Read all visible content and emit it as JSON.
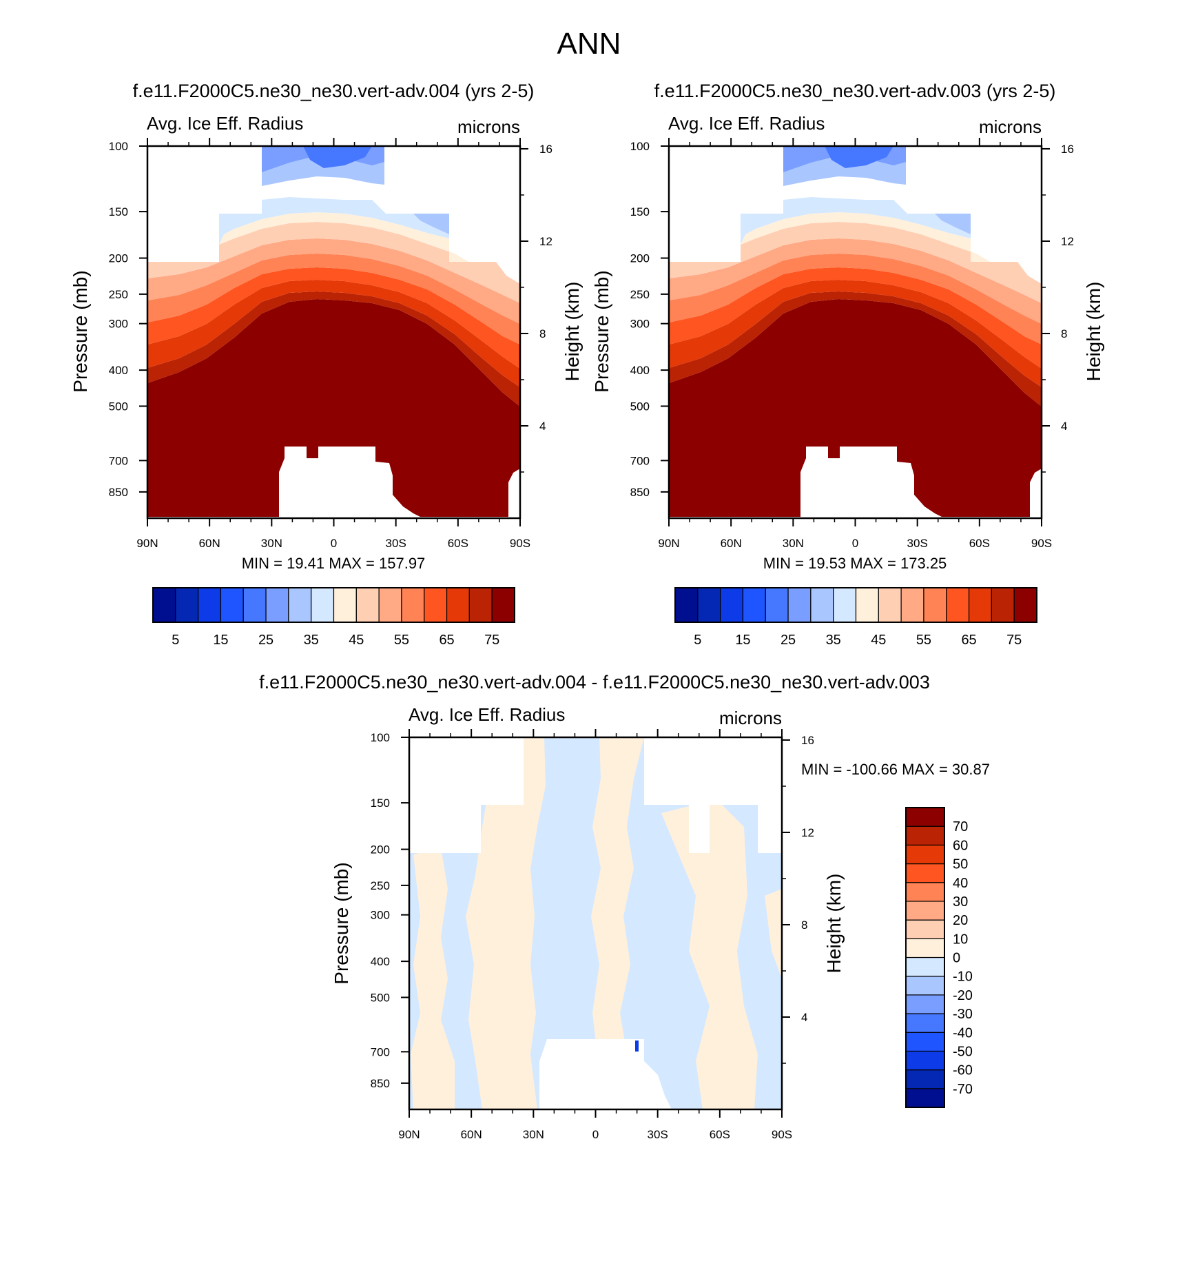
{
  "figure": {
    "title": "ANN"
  },
  "colorbar_abs": {
    "colors": [
      "#000f90",
      "#0428b4",
      "#0d3be8",
      "#1f55ff",
      "#4677ff",
      "#799eff",
      "#aac6ff",
      "#d4e8ff",
      "#fff0dc",
      "#ffcfb4",
      "#ffa985",
      "#ff8355",
      "#ff5520",
      "#e53908",
      "#bb2305",
      "#8c0000"
    ],
    "labels": [
      "5",
      "15",
      "25",
      "35",
      "45",
      "55",
      "65",
      "75"
    ]
  },
  "colorbar_diff": {
    "colors": [
      "#000f90",
      "#0428b4",
      "#0d3be8",
      "#1f55ff",
      "#4677ff",
      "#799eff",
      "#aac6ff",
      "#d4e8ff",
      "#fff0dc",
      "#ffcfb4",
      "#ffa985",
      "#ff8355",
      "#ff5520",
      "#e53908",
      "#bb2305",
      "#8c0000"
    ],
    "labels": [
      "-70",
      "-60",
      "-50",
      "-40",
      "-30",
      "-20",
      "-10",
      "0",
      "10",
      "20",
      "30",
      "40",
      "50",
      "60",
      "70"
    ]
  },
  "panels": [
    {
      "title": "f.e11.F2000C5.ne30_ne30.vert-adv.004 (yrs 2-5)",
      "var_label": "Avg. Ice Eff. Radius",
      "units": "microns",
      "ylabel": "Pressure (mb)",
      "ylabel_right": "Height (km)",
      "stats": "MIN =  19.41  MAX = 157.97"
    },
    {
      "title": "f.e11.F2000C5.ne30_ne30.vert-adv.003 (yrs 2-5)",
      "var_label": "Avg. Ice Eff. Radius",
      "units": "microns",
      "ylabel": "Pressure (mb)",
      "ylabel_right": "Height (km)",
      "stats": "MIN =  19.53  MAX = 173.25"
    },
    {
      "title": "f.e11.F2000C5.ne30_ne30.vert-adv.004 - f.e11.F2000C5.ne30_ne30.vert-adv.003",
      "var_label": "Avg. Ice Eff. Radius",
      "units": "microns",
      "ylabel": "Pressure (mb)",
      "ylabel_right": "Height (km)",
      "stats": "MIN = -100.66  MAX =  30.87"
    }
  ],
  "chart_data": [
    {
      "type": "heatmap",
      "title": "f.e11.F2000C5.ne30_ne30.vert-adv.004 (yrs 2-5)",
      "variable": "Avg. Ice Eff. Radius",
      "units": "microns",
      "xlabel": "",
      "ylabel": "Pressure (mb)",
      "ylabel_right": "Height (km)",
      "x_ticks": [
        "90N",
        "60N",
        "30N",
        "0",
        "30S",
        "60S",
        "90S"
      ],
      "x_tick_values": [
        90,
        60,
        30,
        0,
        -30,
        -60,
        -90
      ],
      "y_ticks": [
        100,
        150,
        200,
        250,
        300,
        400,
        500,
        700,
        850
      ],
      "y_right_ticks": [
        16,
        12,
        8,
        4
      ],
      "ylim": [
        100,
        1000
      ],
      "log_scale_y": true,
      "min": 19.41,
      "max": 157.97,
      "contour_levels": [
        5,
        10,
        15,
        20,
        25,
        30,
        35,
        40,
        45,
        50,
        55,
        60,
        65,
        70,
        75
      ],
      "colorbar_labels": [
        "5",
        "15",
        "25",
        "35",
        "45",
        "55",
        "65",
        "75"
      ]
    },
    {
      "type": "heatmap",
      "title": "f.e11.F2000C5.ne30_ne30.vert-adv.003 (yrs 2-5)",
      "variable": "Avg. Ice Eff. Radius",
      "units": "microns",
      "xlabel": "",
      "ylabel": "Pressure (mb)",
      "ylabel_right": "Height (km)",
      "x_ticks": [
        "90N",
        "60N",
        "30N",
        "0",
        "30S",
        "60S",
        "90S"
      ],
      "x_tick_values": [
        90,
        60,
        30,
        0,
        -30,
        -60,
        -90
      ],
      "y_ticks": [
        100,
        150,
        200,
        250,
        300,
        400,
        500,
        700,
        850
      ],
      "y_right_ticks": [
        16,
        12,
        8,
        4
      ],
      "ylim": [
        100,
        1000
      ],
      "log_scale_y": true,
      "min": 19.53,
      "max": 173.25,
      "contour_levels": [
        5,
        10,
        15,
        20,
        25,
        30,
        35,
        40,
        45,
        50,
        55,
        60,
        65,
        70,
        75
      ],
      "colorbar_labels": [
        "5",
        "15",
        "25",
        "35",
        "45",
        "55",
        "65",
        "75"
      ]
    },
    {
      "type": "heatmap",
      "title": "f.e11.F2000C5.ne30_ne30.vert-adv.004 - f.e11.F2000C5.ne30_ne30.vert-adv.003",
      "variable": "Avg. Ice Eff. Radius",
      "units": "microns",
      "xlabel": "",
      "ylabel": "Pressure (mb)",
      "ylabel_right": "Height (km)",
      "x_ticks": [
        "90N",
        "60N",
        "30N",
        "0",
        "30S",
        "60S",
        "90S"
      ],
      "x_tick_values": [
        90,
        60,
        30,
        0,
        -30,
        -60,
        -90
      ],
      "y_ticks": [
        100,
        150,
        200,
        250,
        300,
        400,
        500,
        700,
        850
      ],
      "y_right_ticks": [
        16,
        12,
        8,
        4
      ],
      "ylim": [
        100,
        1000
      ],
      "log_scale_y": true,
      "min": -100.66,
      "max": 30.87,
      "contour_levels": [
        -70,
        -60,
        -50,
        -40,
        -30,
        -20,
        -10,
        0,
        10,
        20,
        30,
        40,
        50,
        60,
        70
      ],
      "colorbar_labels": [
        "-70",
        "-60",
        "-50",
        "-40",
        "-30",
        "-20",
        "-10",
        "0",
        "10",
        "20",
        "30",
        "40",
        "50",
        "60",
        "70"
      ]
    }
  ]
}
